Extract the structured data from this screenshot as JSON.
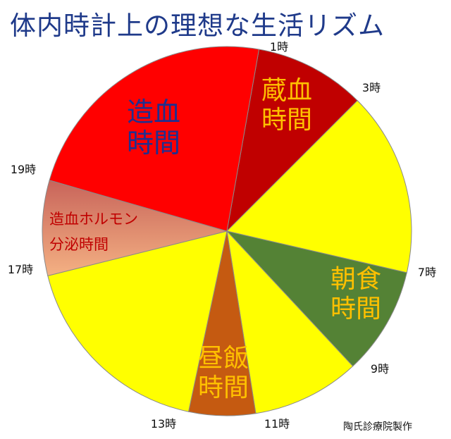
{
  "title": "体内時計上の理想な生活リズム",
  "credit": "陶氏診療院製作",
  "chart_data": {
    "type": "pie",
    "unit": "時",
    "slices": [
      {
        "label": "蔵血時間",
        "start": 1,
        "end": 3,
        "color": "#c00000",
        "label_color": "#ffc000"
      },
      {
        "label": "",
        "start": 3,
        "end": 7,
        "color": "#ffff00"
      },
      {
        "label": "朝食時間",
        "start": 7,
        "end": 9,
        "color": "#548235",
        "label_color": "#ffc000"
      },
      {
        "label": "",
        "start": 9,
        "end": 11,
        "color": "#ffff00"
      },
      {
        "label": "昼飯時間",
        "start": 11,
        "end": 13,
        "color": "#c55a11",
        "label_color": "#ffc000"
      },
      {
        "label": "",
        "start": 13,
        "end": 17,
        "color": "#ffff00"
      },
      {
        "label": "造血ホルモン分泌時間",
        "start": 17,
        "end": 19,
        "color": "#e99a75",
        "label_color": "#c00000"
      },
      {
        "label": "造血時間",
        "start": 19,
        "end": 25,
        "color": "#ff0000",
        "label_color": "#1f2f8f"
      }
    ],
    "tick_labels": [
      "1時",
      "3時",
      "7時",
      "9時",
      "11時",
      "13時",
      "17時",
      "19時"
    ]
  }
}
